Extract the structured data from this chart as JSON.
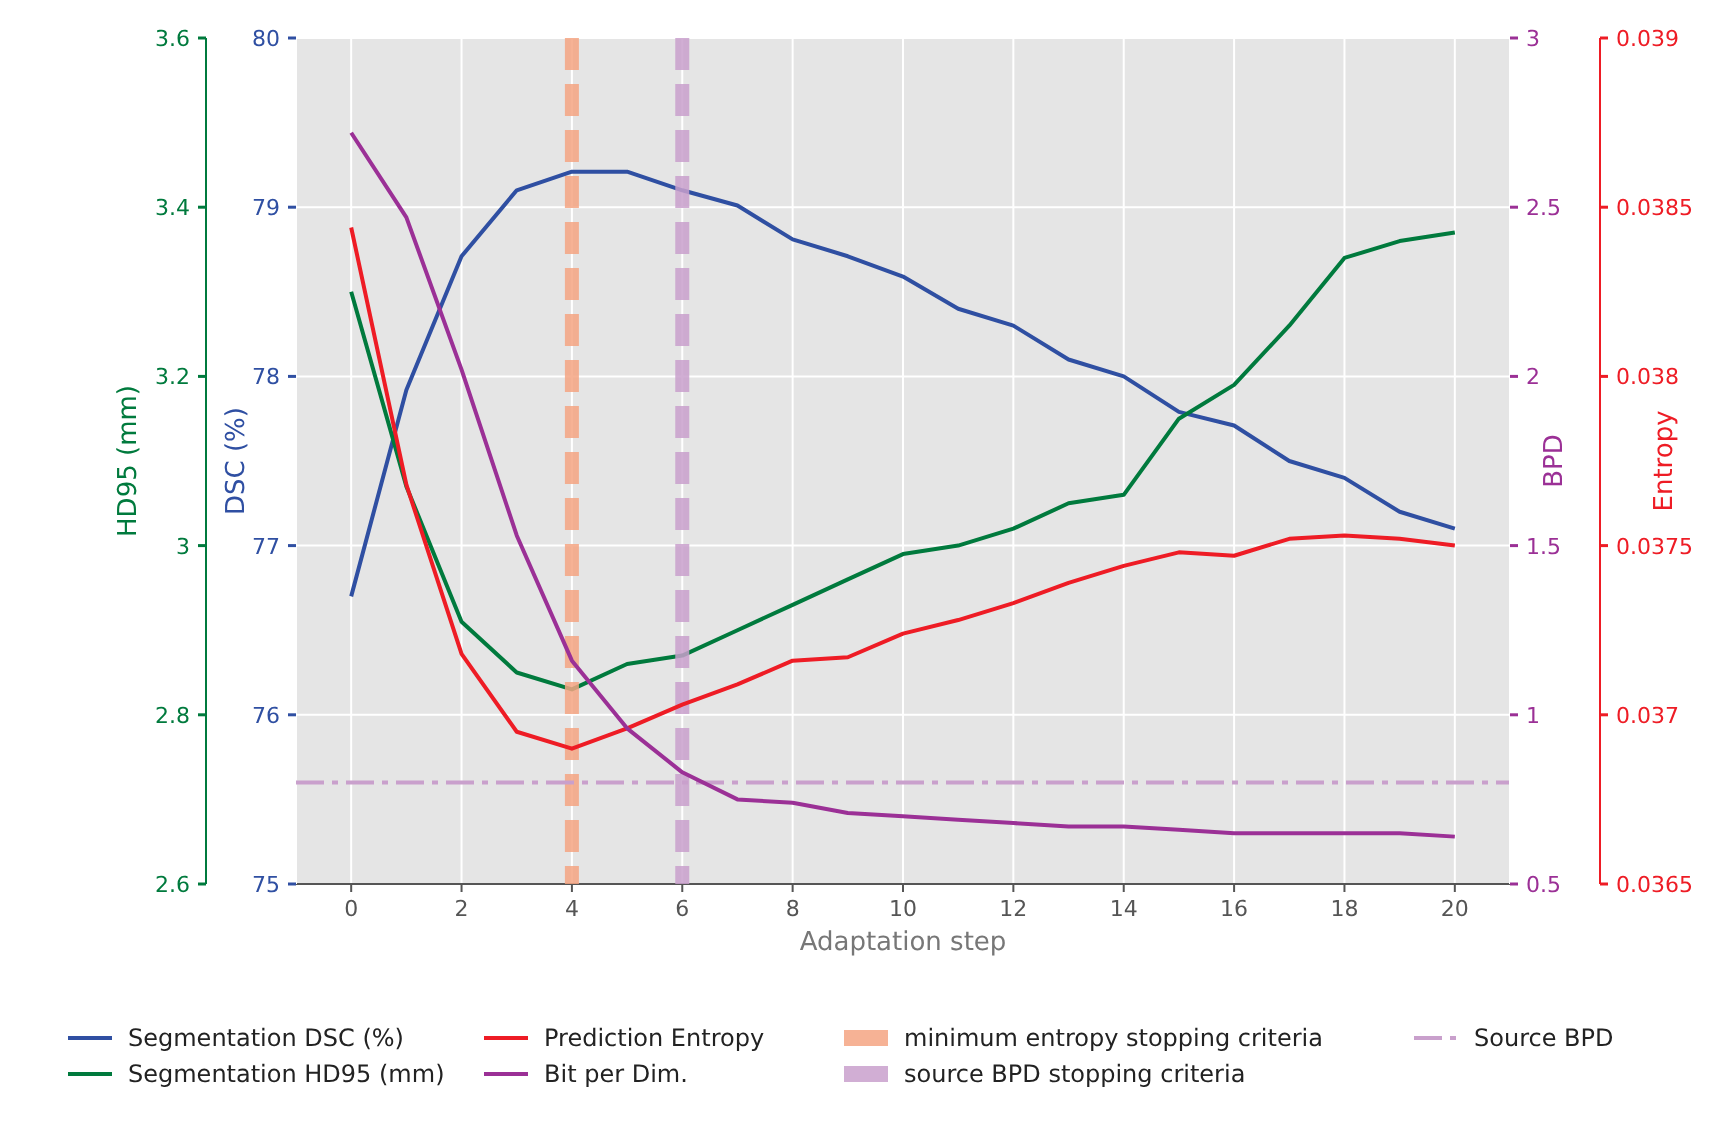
{
  "chart_data": [
    {
      "type": "line",
      "xlabel": "Adaptation step",
      "ylabel": "DSC (%)",
      "y3label": "HD95 (mm)",
      "x": [
        0,
        1,
        2,
        3,
        4,
        5,
        6,
        7,
        8,
        9,
        10,
        11,
        12,
        13,
        14,
        15,
        16,
        17,
        18,
        19,
        20
      ],
      "xlim": [
        -1,
        21
      ],
      "xticks": [
        0,
        2,
        4,
        6,
        8,
        10,
        12,
        14,
        16,
        18,
        20
      ],
      "ylim": [
        75,
        80
      ],
      "yticks": [
        75,
        76,
        77,
        78,
        79,
        80
      ],
      "y3lim": [
        2.6,
        3.6
      ],
      "y3ticks": [
        2.6,
        2.8,
        3,
        3.2,
        3.4,
        3.6
      ],
      "grid": true,
      "legend": "bottom",
      "line_style": "solid",
      "series": [
        {
          "name": "Segmentation DSC (%)",
          "color": "#2f4fa2",
          "values": [
            76.7,
            77.92,
            78.71,
            79.1,
            79.21,
            79.21,
            79.1,
            79.01,
            78.81,
            78.71,
            78.59,
            78.4,
            78.3,
            78.1,
            78.0,
            77.79,
            77.71,
            77.5,
            77.4,
            77.2,
            77.1
          ]
        },
        {
          "name": "Segmentation HD95 (mm)",
          "color": "#007a3d",
          "axis": "y3",
          "values": [
            3.3,
            3.07,
            2.91,
            2.85,
            2.83,
            2.86,
            2.87,
            2.9,
            2.93,
            2.96,
            2.99,
            3.0,
            3.02,
            3.05,
            3.06,
            3.15,
            3.19,
            3.26,
            3.34,
            3.36,
            3.37
          ]
        }
      ]
    },
    {
      "type": "line",
      "ylabel": "BPD",
      "y2label": "Entropy",
      "x": [
        0,
        1,
        2,
        3,
        4,
        5,
        6,
        7,
        8,
        9,
        10,
        11,
        12,
        13,
        14,
        15,
        16,
        17,
        18,
        19,
        20
      ],
      "xlim": [
        -1,
        21
      ],
      "ylim": [
        0.5,
        3
      ],
      "yticks": [
        0.5,
        1,
        1.5,
        2,
        2.5,
        3
      ],
      "y2lim": [
        0.0365,
        0.039
      ],
      "y2ticks": [
        0.0365,
        0.037,
        0.0375,
        0.038,
        0.0385,
        0.039
      ],
      "tick_labels": "y",
      "legend": "bottom",
      "line_style": "solid",
      "series": [
        {
          "name": "Prediction Entropy",
          "color": "#ee1c25",
          "axis": "y2",
          "values": [
            0.03844,
            0.03768,
            0.03718,
            0.03695,
            0.0369,
            0.03696,
            0.03703,
            0.03709,
            0.03716,
            0.03717,
            0.03724,
            0.03728,
            0.03733,
            0.03739,
            0.03744,
            0.03748,
            0.03747,
            0.03752,
            0.03753,
            0.03752,
            0.0375
          ]
        },
        {
          "name": "Bit per Dim.",
          "color": "#9b3096",
          "values": [
            2.72,
            2.47,
            2.02,
            1.53,
            1.16,
            0.96,
            0.83,
            0.75,
            0.74,
            0.71,
            0.7,
            0.69,
            0.68,
            0.67,
            0.67,
            0.66,
            0.65,
            0.65,
            0.65,
            0.65,
            0.64
          ]
        }
      ],
      "ref_lines": [
        {
          "axis": "x",
          "value": 4,
          "label": "minimum entropy stopping criteria",
          "color": "#f4a582",
          "line_style": "dashed"
        },
        {
          "axis": "x",
          "value": 6,
          "label": "source BPD stopping criteria",
          "color": "#c9a0cc",
          "line_style": "dashed"
        },
        {
          "axis": "y",
          "value": 0.8,
          "label": "Source BPD",
          "color": "#c9a0cc",
          "line_style": "dashed"
        }
      ]
    }
  ]
}
